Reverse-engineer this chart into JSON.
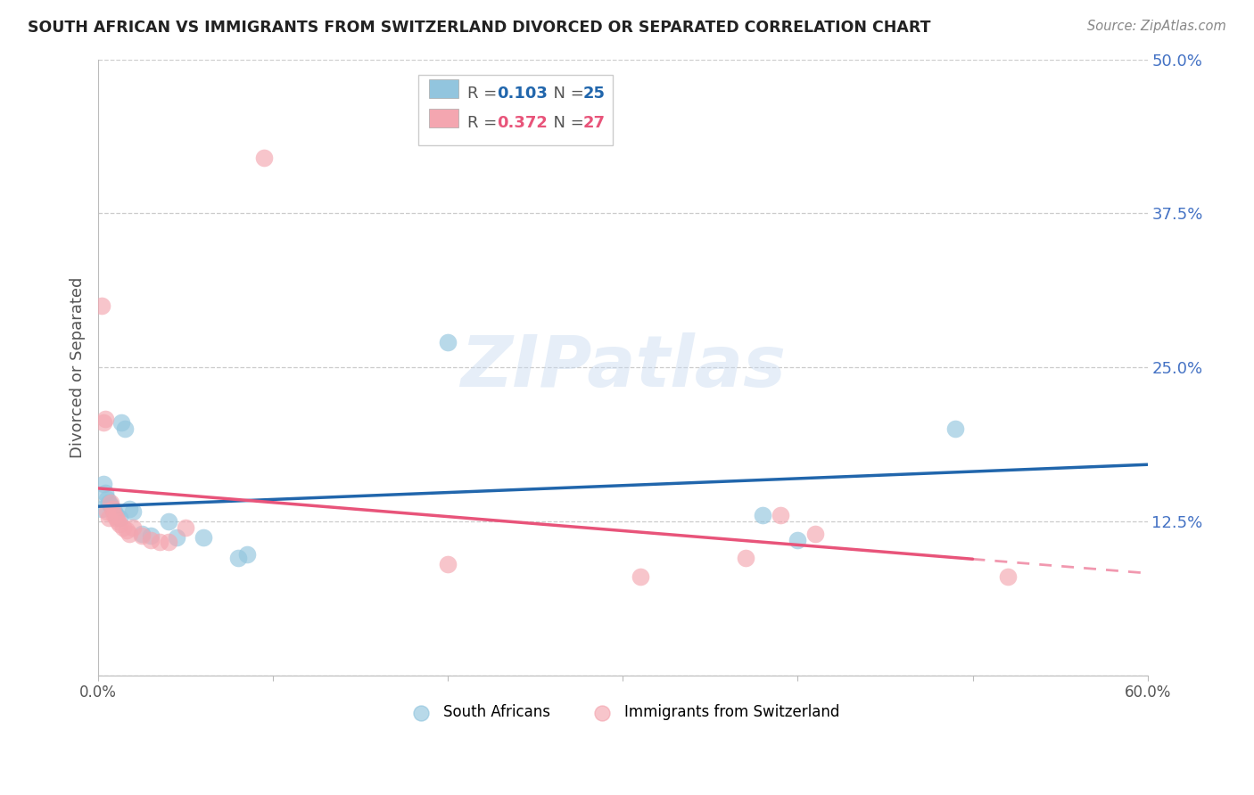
{
  "title": "SOUTH AFRICAN VS IMMIGRANTS FROM SWITZERLAND DIVORCED OR SEPARATED CORRELATION CHART",
  "source": "Source: ZipAtlas.com",
  "ylabel": "Divorced or Separated",
  "xlim": [
    0.0,
    0.6
  ],
  "ylim": [
    0.0,
    0.5
  ],
  "xticks": [
    0.0,
    0.1,
    0.2,
    0.3,
    0.4,
    0.5,
    0.6
  ],
  "yticks": [
    0.0,
    0.125,
    0.25,
    0.375,
    0.5
  ],
  "ytick_labels": [
    "",
    "12.5%",
    "25.0%",
    "37.5%",
    "50.0%"
  ],
  "xtick_labels": [
    "0.0%",
    "",
    "",
    "",
    "",
    "",
    "60.0%"
  ],
  "blue_R": 0.103,
  "blue_N": 25,
  "pink_R": 0.372,
  "pink_N": 27,
  "blue_color": "#92c5de",
  "pink_color": "#f4a6b0",
  "blue_line_color": "#2166ac",
  "pink_line_color": "#e8547a",
  "watermark": "ZIPatlas",
  "blue_points": [
    [
      0.002,
      0.135
    ],
    [
      0.003,
      0.155
    ],
    [
      0.004,
      0.148
    ],
    [
      0.005,
      0.143
    ],
    [
      0.006,
      0.14
    ],
    [
      0.007,
      0.138
    ],
    [
      0.008,
      0.135
    ],
    [
      0.009,
      0.133
    ],
    [
      0.01,
      0.13
    ],
    [
      0.012,
      0.128
    ],
    [
      0.013,
      0.205
    ],
    [
      0.015,
      0.2
    ],
    [
      0.018,
      0.135
    ],
    [
      0.02,
      0.133
    ],
    [
      0.025,
      0.115
    ],
    [
      0.03,
      0.113
    ],
    [
      0.04,
      0.125
    ],
    [
      0.045,
      0.112
    ],
    [
      0.06,
      0.112
    ],
    [
      0.08,
      0.095
    ],
    [
      0.085,
      0.098
    ],
    [
      0.2,
      0.27
    ],
    [
      0.38,
      0.13
    ],
    [
      0.4,
      0.11
    ],
    [
      0.49,
      0.2
    ]
  ],
  "pink_points": [
    [
      0.002,
      0.3
    ],
    [
      0.003,
      0.205
    ],
    [
      0.004,
      0.208
    ],
    [
      0.005,
      0.133
    ],
    [
      0.006,
      0.128
    ],
    [
      0.007,
      0.14
    ],
    [
      0.008,
      0.135
    ],
    [
      0.009,
      0.13
    ],
    [
      0.01,
      0.128
    ],
    [
      0.011,
      0.125
    ],
    [
      0.012,
      0.123
    ],
    [
      0.014,
      0.12
    ],
    [
      0.016,
      0.118
    ],
    [
      0.018,
      0.115
    ],
    [
      0.02,
      0.12
    ],
    [
      0.025,
      0.113
    ],
    [
      0.03,
      0.11
    ],
    [
      0.035,
      0.108
    ],
    [
      0.04,
      0.108
    ],
    [
      0.05,
      0.12
    ],
    [
      0.095,
      0.42
    ],
    [
      0.2,
      0.09
    ],
    [
      0.31,
      0.08
    ],
    [
      0.37,
      0.095
    ],
    [
      0.39,
      0.13
    ],
    [
      0.41,
      0.115
    ],
    [
      0.52,
      0.08
    ]
  ]
}
